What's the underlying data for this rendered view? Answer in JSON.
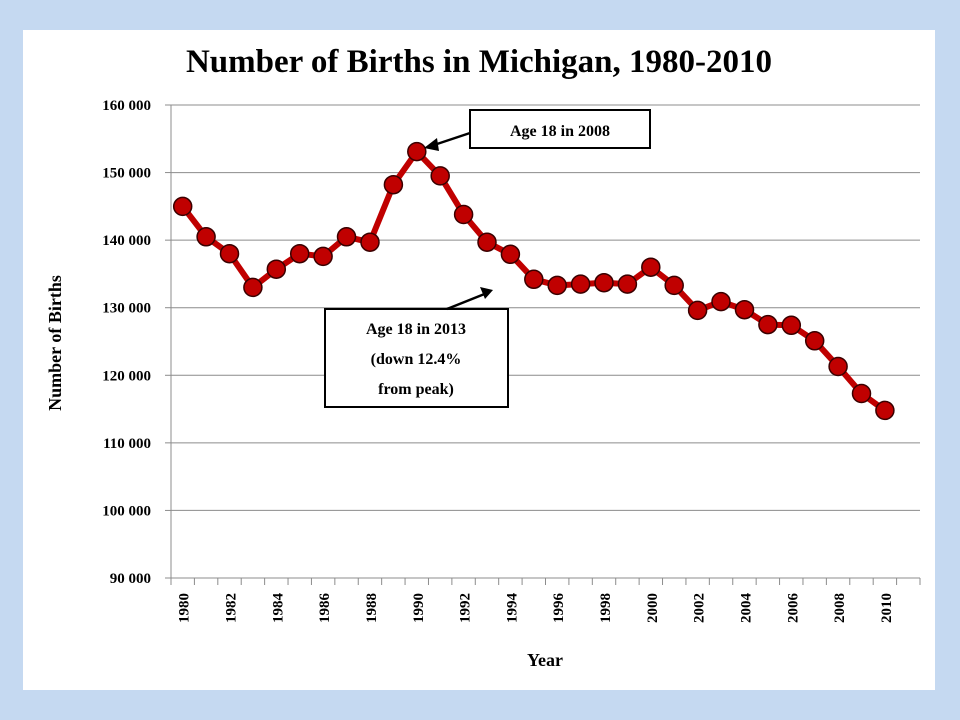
{
  "chart_data": {
    "type": "line",
    "title": "Number of Births in Michigan, 1980-2010",
    "xlabel": "Year",
    "ylabel": "Number of Births",
    "ylim": [
      90000,
      160000
    ],
    "yticks": [
      90000,
      100000,
      110000,
      120000,
      130000,
      140000,
      150000,
      160000
    ],
    "ytick_labels": [
      "90 000",
      "100 000",
      "110 000",
      "120 000",
      "130 000",
      "140 000",
      "150 000",
      "160 000"
    ],
    "x_range": [
      1980,
      2011
    ],
    "xtick_labels": [
      "1980",
      "1982",
      "1984",
      "1986",
      "1988",
      "1990",
      "1992",
      "1994",
      "1996",
      "1998",
      "2000",
      "2002",
      "2004",
      "2006",
      "2008",
      "2010"
    ],
    "grid": "horizontal",
    "legend": "none",
    "line_color": "#c00000",
    "marker_fill": "#c00000",
    "marker_edge": "#3a0000",
    "series": [
      {
        "x": [
          1980,
          1981,
          1982,
          1983,
          1984,
          1985,
          1986,
          1987,
          1988,
          1989,
          1990,
          1991,
          1992,
          1993,
          1994,
          1995,
          1996,
          1997,
          1998,
          1999,
          2000,
          2001,
          2002,
          2003,
          2004,
          2005,
          2006,
          2007,
          2008,
          2009,
          2010
        ],
        "values": [
          145000,
          140500,
          138000,
          133000,
          135700,
          138000,
          137600,
          140500,
          139700,
          148200,
          153100,
          149500,
          143800,
          139700,
          137900,
          134200,
          133300,
          133500,
          133700,
          133500,
          136000,
          133300,
          129600,
          130900,
          129700,
          127500,
          127400,
          125100,
          121300,
          117300,
          114800
        ]
      }
    ],
    "annotations": [
      {
        "lines": [
          "Age 18 in 2008"
        ]
      },
      {
        "lines": [
          "Age 18 in 2013",
          "(down 12.4%",
          "from peak)"
        ]
      }
    ]
  }
}
